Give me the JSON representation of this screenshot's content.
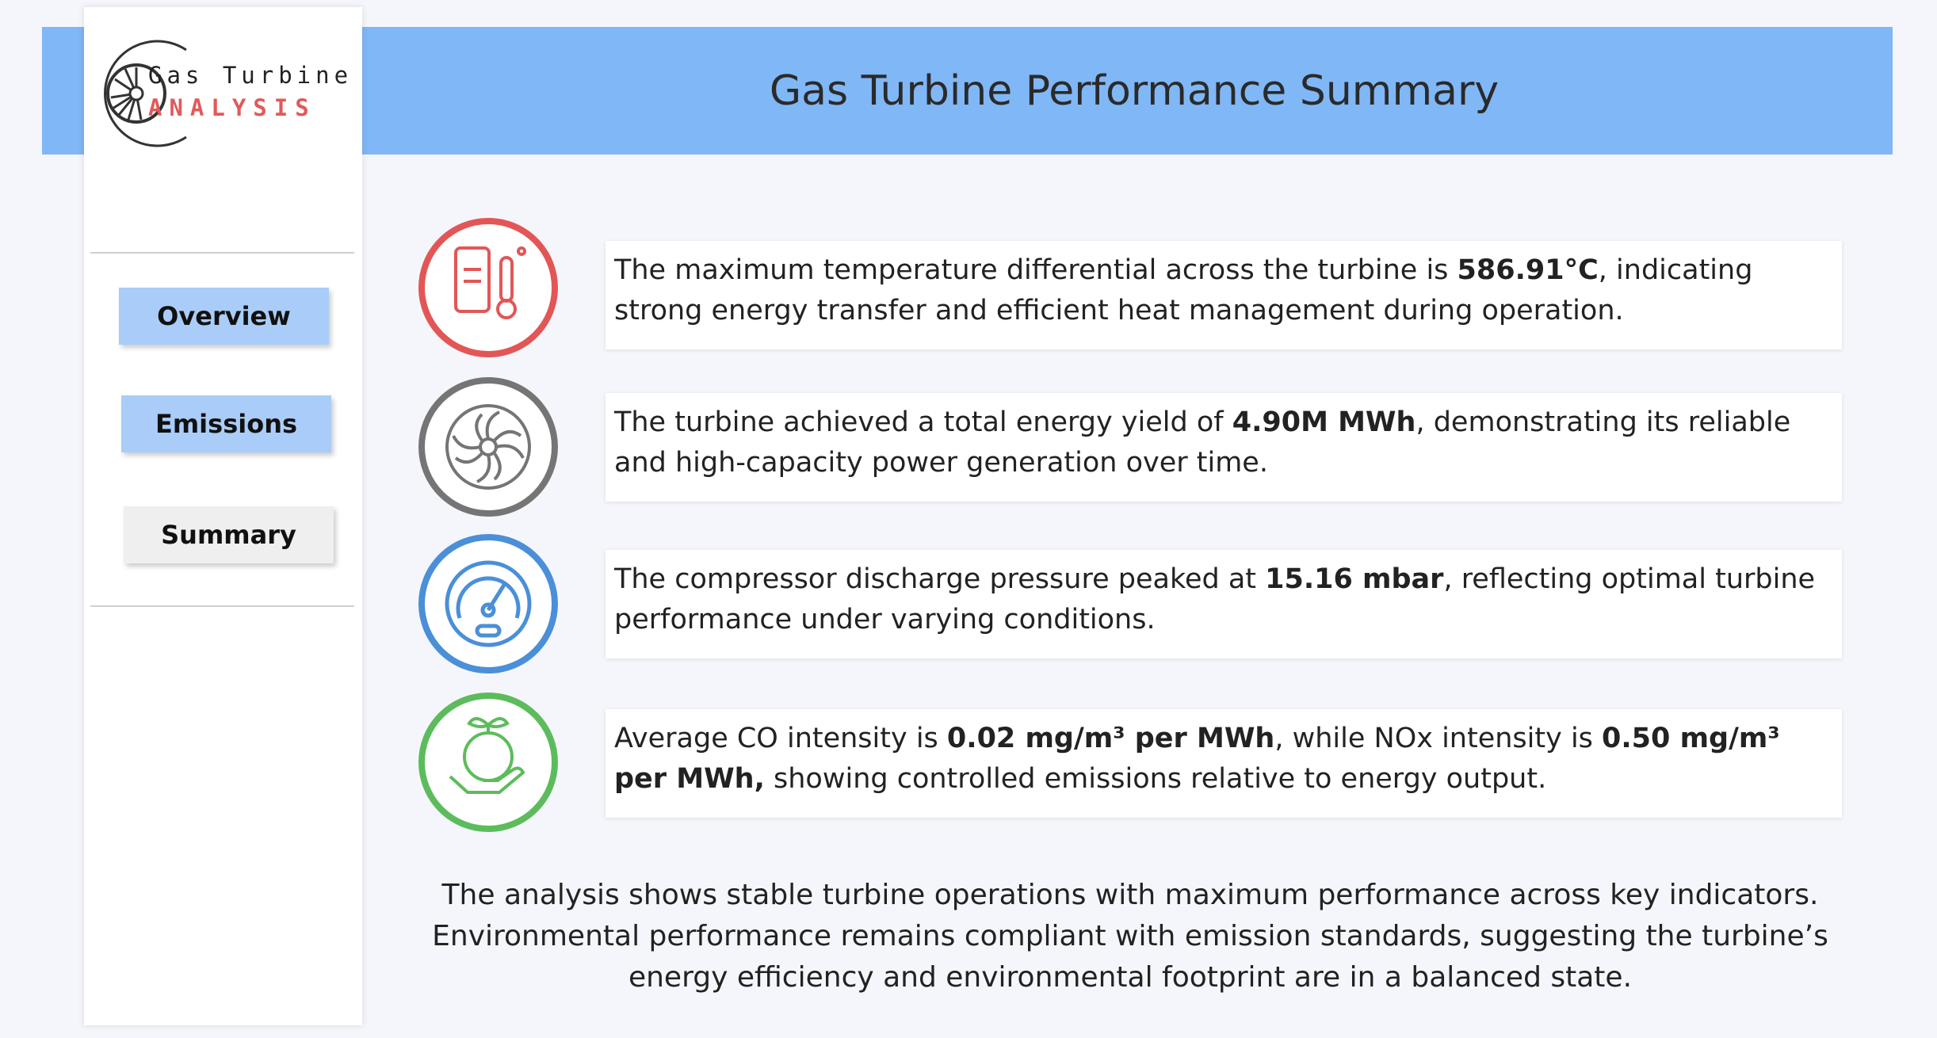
{
  "sidebar": {
    "logo": {
      "line1": "Gas Turbine",
      "line2": "ANALYSIS"
    },
    "nav": [
      "Overview",
      "Emissions",
      "Summary"
    ]
  },
  "header": {
    "title": "Gas Turbine Performance Summary"
  },
  "cards": [
    {
      "segments": [
        "The maximum temperature differential across the turbine is ",
        "586.91°C",
        ", indicating strong energy transfer and efficient heat management during operation."
      ]
    },
    {
      "segments": [
        "The turbine achieved a total energy yield of ",
        "4.90M MWh",
        ", demonstrating its reliable and high-capacity power generation over time."
      ]
    },
    {
      "segments": [
        "The compressor discharge pressure peaked at ",
        "15.16 mbar",
        ", reflecting optimal turbine performance under varying conditions."
      ]
    },
    {
      "segments": [
        "Average CO intensity is ",
        "0.02 mg/m³ per MWh",
        ", while NOx intensity is ",
        "0.50 mg/m³ per MWh,",
        " showing controlled emissions relative to energy output."
      ]
    }
  ],
  "summary": "The analysis shows stable turbine operations with maximum performance across key indicators. Environmental performance remains compliant with emission standards, suggesting the turbine’s energy efficiency and environmental footprint are in a balanced state."
}
